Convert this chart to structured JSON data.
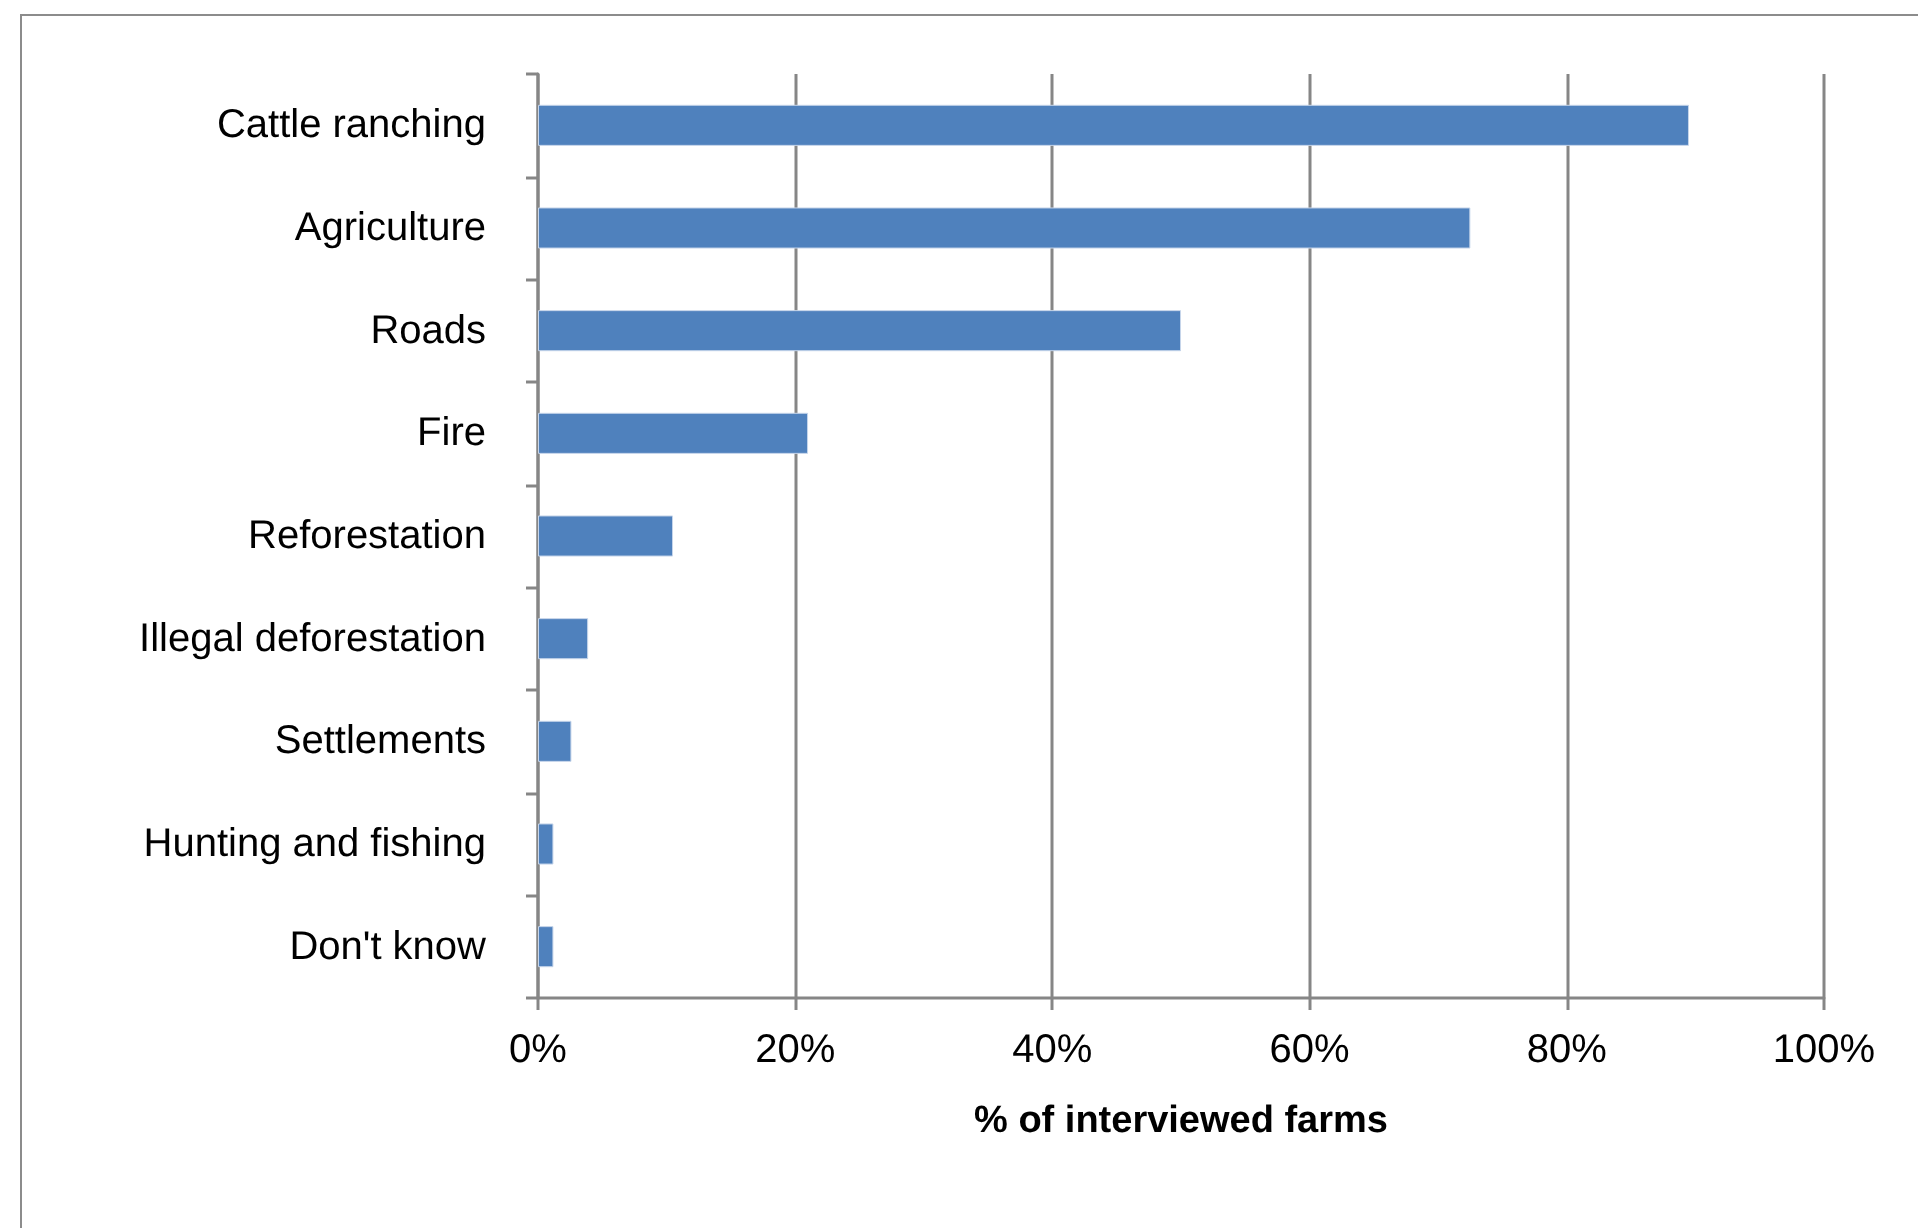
{
  "chart_data": {
    "type": "bar",
    "orientation": "horizontal",
    "categories": [
      "Cattle ranching",
      "Agriculture",
      "Roads",
      "Fire",
      "Reforestation",
      "Illegal deforestation",
      "Settlements",
      "Hunting and fishing",
      "Don't know"
    ],
    "values": [
      89.5,
      72.5,
      50,
      21,
      10.5,
      3.9,
      2.6,
      1.2,
      1.2
    ],
    "color": "#4f81bd",
    "xlabel": "% of interviewed farms",
    "xlim": [
      0,
      100
    ],
    "xticks": [
      {
        "value": 0,
        "label": "0%"
      },
      {
        "value": 20,
        "label": "20%"
      },
      {
        "value": 40,
        "label": "40%"
      },
      {
        "value": 60,
        "label": "60%"
      },
      {
        "value": 80,
        "label": "80%"
      },
      {
        "value": 100,
        "label": "100%"
      }
    ],
    "grid": "x"
  }
}
